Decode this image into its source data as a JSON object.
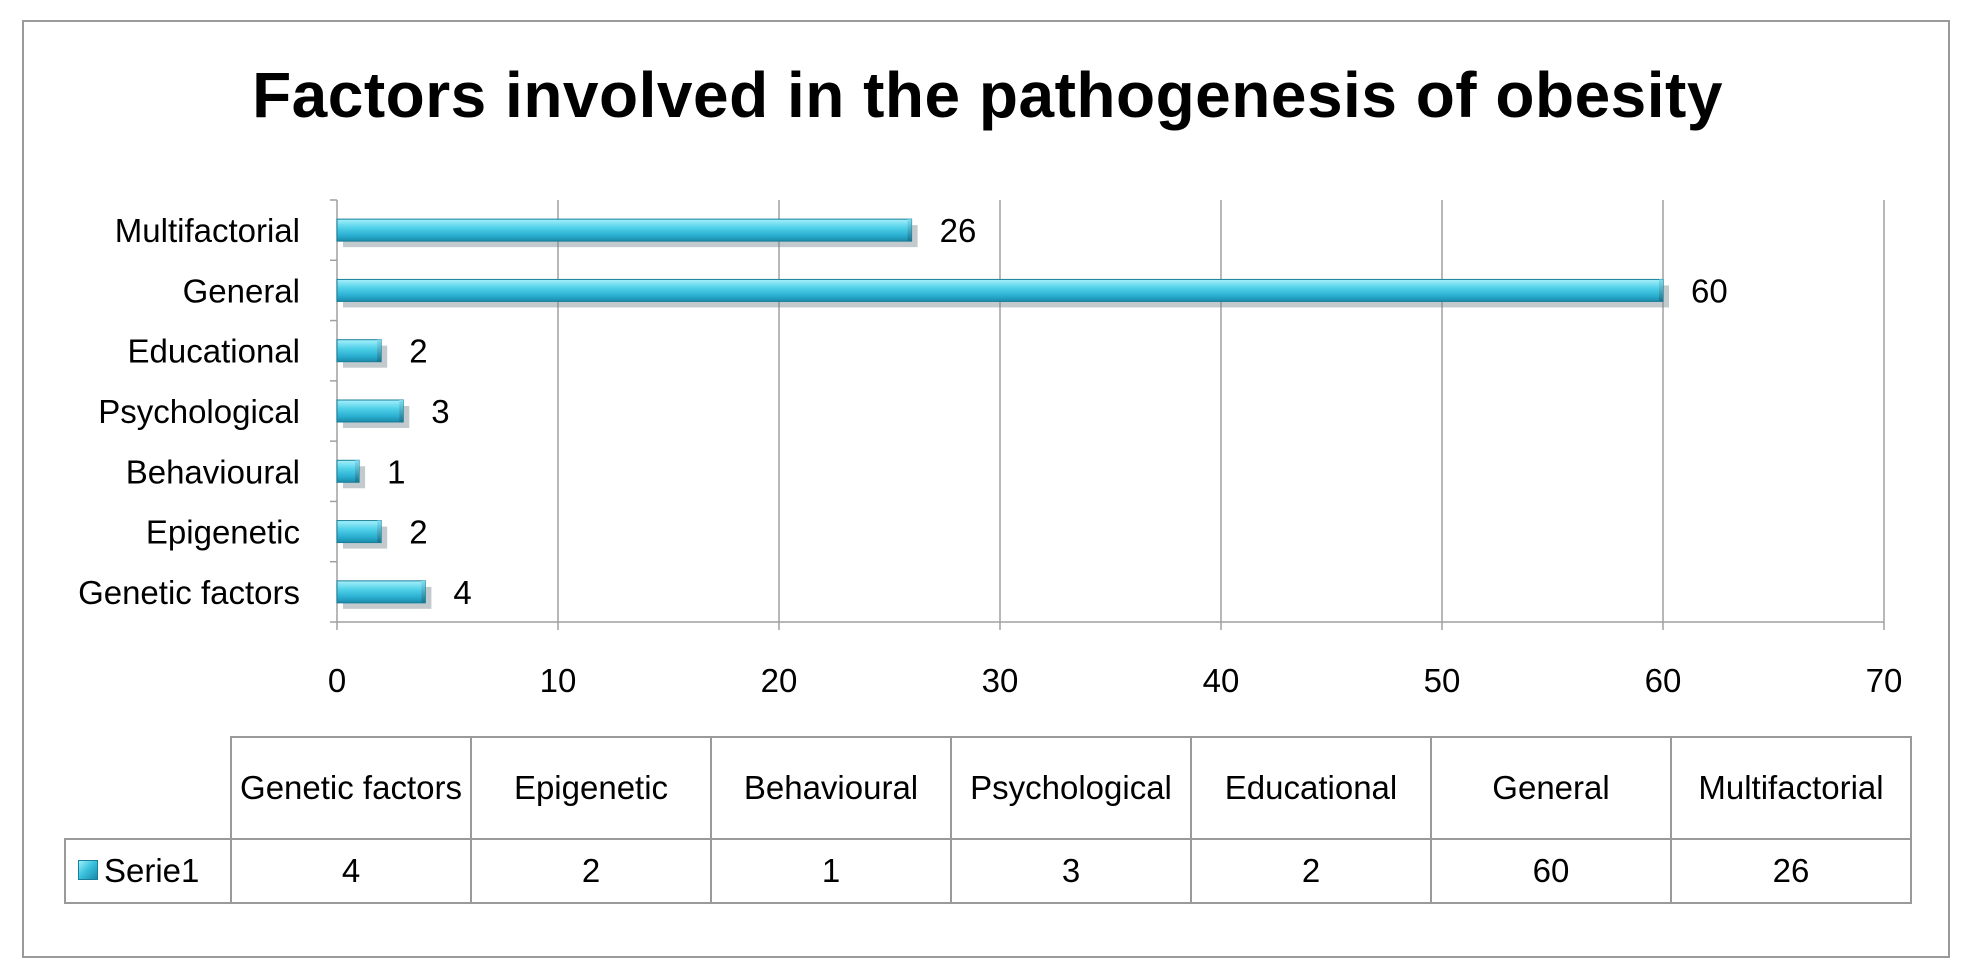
{
  "chart_data": {
    "type": "bar",
    "orientation": "horizontal",
    "title": "Factors involved in the pathogenesis of obesity",
    "categories": [
      "Genetic factors",
      "Epigenetic",
      "Behavioural",
      "Psychological",
      "Educational",
      "General",
      "Multifactorial"
    ],
    "series": [
      {
        "name": "Serie1",
        "values": [
          4,
          2,
          1,
          3,
          2,
          60,
          26
        ]
      }
    ],
    "xlim": [
      0,
      70
    ],
    "x_ticks": [
      0,
      10,
      20,
      30,
      40,
      50,
      60,
      70
    ],
    "data_labels": true,
    "grid": "vertical",
    "data_table": true,
    "colors": {
      "bar": "#3cc3df",
      "bar_light": "#a6f0fb",
      "bar_dark": "#1a8aa8",
      "grid": "#a0a0a0",
      "frame": "#9a9a9a"
    }
  }
}
